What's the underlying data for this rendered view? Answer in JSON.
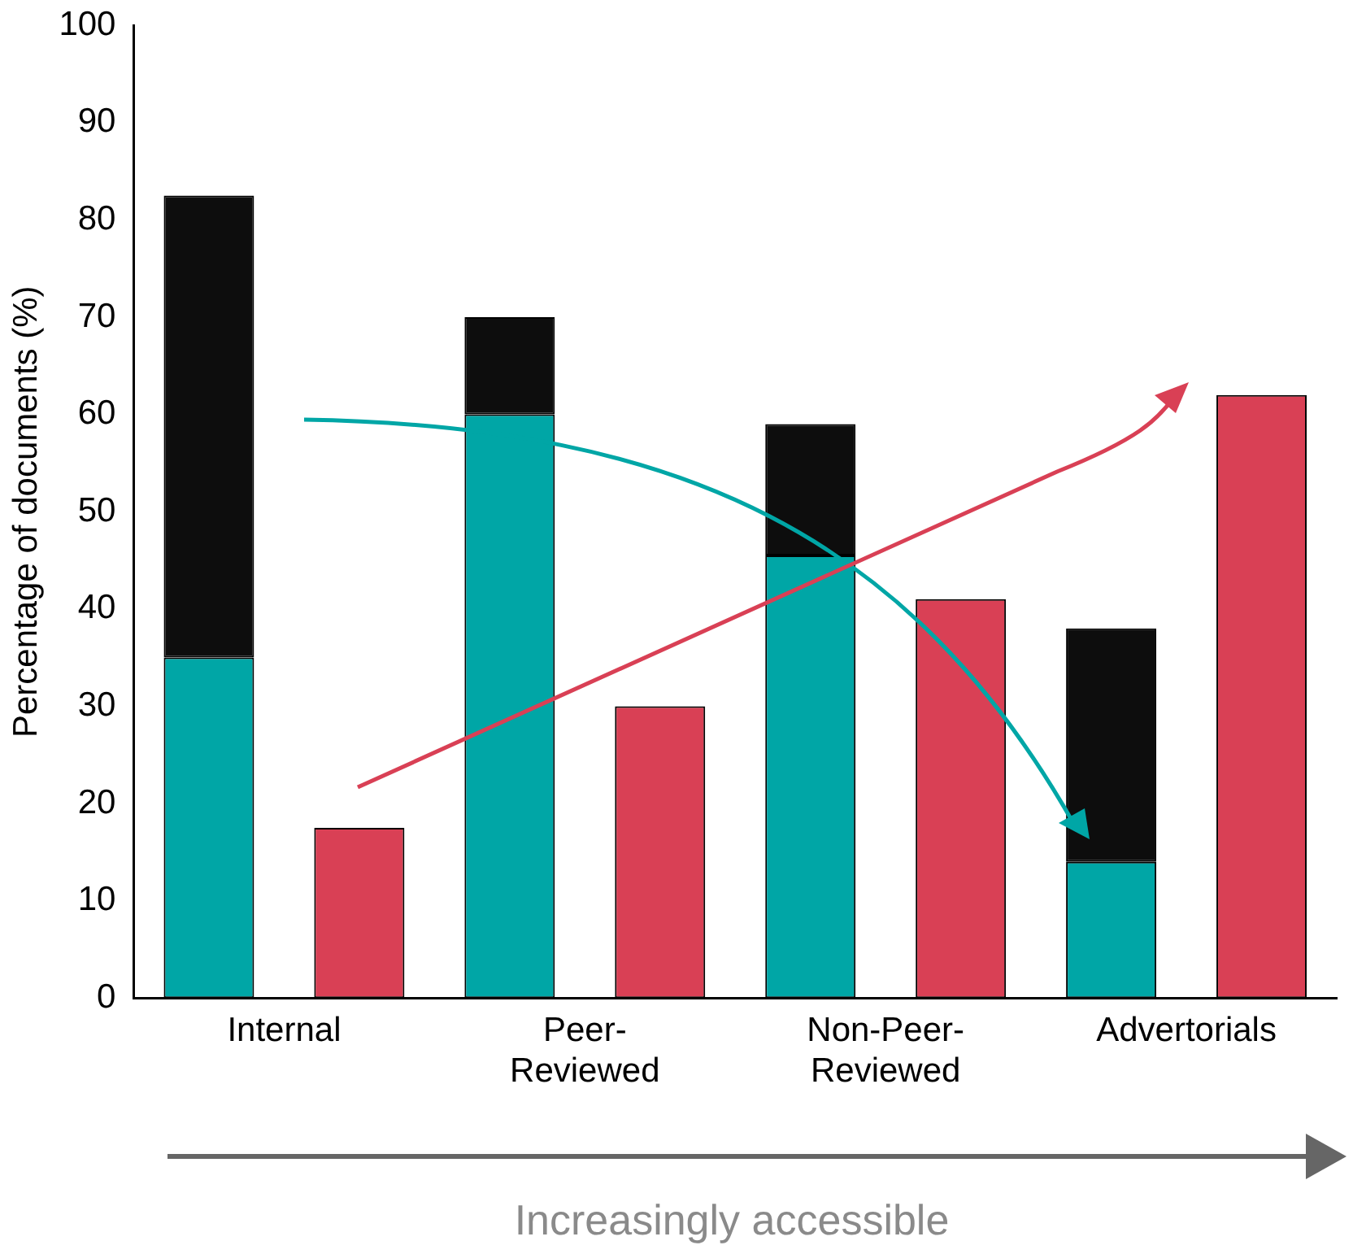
{
  "chart_data": {
    "type": "bar",
    "stacked": true,
    "ylabel": "Percentage of documents (%)",
    "categories": [
      "Internal",
      null,
      "Peer-Reviewed",
      null,
      "Non-Peer-Reviewed",
      null,
      "Advertorials",
      null
    ],
    "series": [
      {
        "color": "#00a6a6",
        "values": [
          35,
          null,
          60,
          null,
          45.5,
          null,
          14,
          null
        ]
      },
      {
        "color": "#0d0d0d",
        "values": [
          47.5,
          null,
          10,
          null,
          13.5,
          null,
          24,
          null
        ]
      },
      {
        "color": "#d94055",
        "values": [
          null,
          17.5,
          null,
          30,
          null,
          41,
          null,
          62
        ]
      }
    ],
    "ylim": [
      0,
      100
    ],
    "yticks": [
      0,
      10,
      20,
      30,
      40,
      50,
      60,
      70,
      80,
      90,
      100
    ],
    "grid": false,
    "legend": false,
    "annotations": [
      "Increasingly accessible"
    ]
  }
}
